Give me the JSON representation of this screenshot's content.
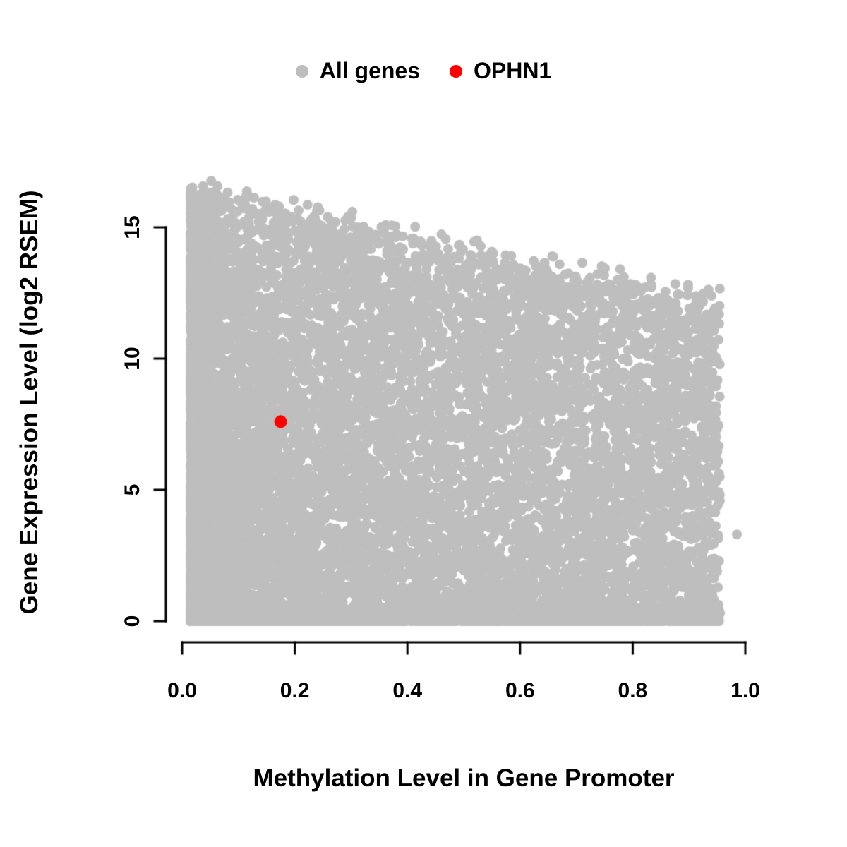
{
  "chart_data": {
    "type": "scatter",
    "title": "",
    "xlabel": "Methylation Level in Gene Promoter",
    "ylabel": "Gene Expression Level (log2 RSEM)",
    "xlim": [
      0.0,
      1.0
    ],
    "ylim": [
      0,
      16.8
    ],
    "x_ticks": [
      "0.0",
      "0.2",
      "0.4",
      "0.6",
      "0.8",
      "1.0"
    ],
    "x_tick_values": [
      0.0,
      0.2,
      0.4,
      0.6,
      0.8,
      1.0
    ],
    "y_ticks": [
      "0",
      "5",
      "10",
      "15"
    ],
    "y_tick_values": [
      0,
      5,
      10,
      15
    ],
    "grid": false,
    "legend_position": "top-center",
    "series": [
      {
        "name": "All genes",
        "type": "point-cloud",
        "color": "#BEBEBE",
        "marker": "filled-circle",
        "n_points": 13000,
        "x_range": [
          0.015,
          0.955
        ],
        "y_range": [
          0,
          16.7
        ],
        "description": "Dense gray cloud of all genes; density highest at low methylation; upper expression envelope declines from ~16.5 at x=0 to ~12 at x=0.95; dense band of near-zero expression across the full methylation range.",
        "cloud_params": {
          "seed": 42,
          "x_uniform_fraction": 0.45,
          "x_power": 2.2,
          "envelope_intercept": 16.5,
          "envelope_slope": -4.6,
          "envelope_jitter": 1.2,
          "y_power": 1.15,
          "near_zero_fraction": 0.18
        },
        "outlier_points": [
          [
            0.985,
            3.3
          ]
        ]
      },
      {
        "name": "OPHN1",
        "type": "point",
        "color": "#FF0000",
        "marker": "filled-circle",
        "points": [
          [
            0.175,
            7.6
          ]
        ]
      }
    ]
  }
}
